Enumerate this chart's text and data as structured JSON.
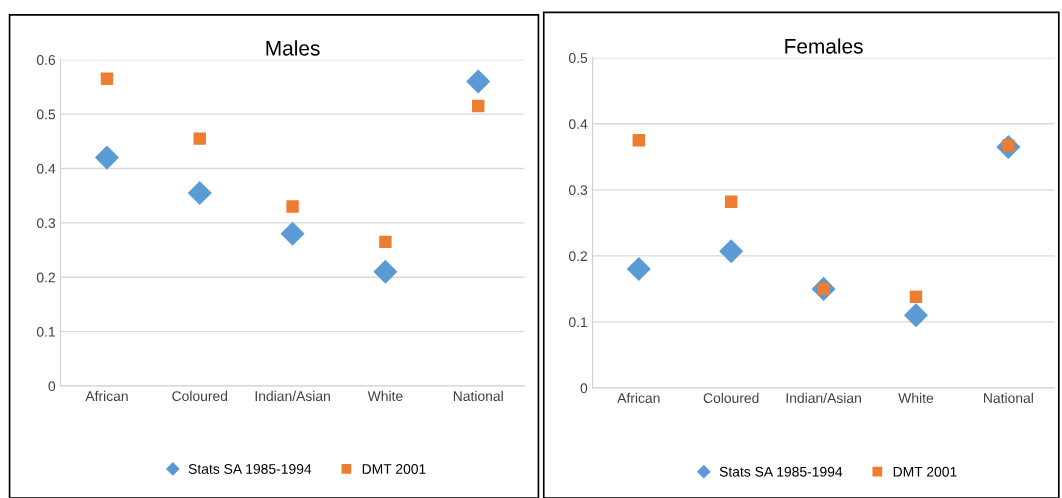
{
  "chart_data": [
    {
      "type": "scatter",
      "title": "Males",
      "categories": [
        "African",
        "Coloured",
        "Indian/Asian",
        "White",
        "National"
      ],
      "ylim": [
        0,
        0.6
      ],
      "yticks": [
        {
          "value": 0,
          "label": "0"
        },
        0.1,
        0.2,
        0.3,
        0.4,
        0.5,
        0.6
      ],
      "grid": "y",
      "legend": "bottom",
      "series": [
        {
          "name": "Stats SA 1985-1994",
          "color": "#5b9bd5",
          "marker": "diamond",
          "values": [
            0.42,
            0.355,
            0.28,
            0.21,
            0.56
          ]
        },
        {
          "name": "DMT 2001",
          "color": "#ed7d31",
          "marker": "square",
          "values": [
            0.565,
            0.455,
            0.33,
            0.265,
            0.515
          ]
        }
      ]
    },
    {
      "type": "scatter",
      "title": "Females",
      "categories": [
        "African",
        "Coloured",
        "Indian/Asian",
        "White",
        "National"
      ],
      "ylim": [
        0,
        0.5
      ],
      "yticks": [
        {
          "value": 0,
          "label": "0"
        },
        0.1,
        0.2,
        0.3,
        0.4,
        0.5
      ],
      "grid": "y",
      "legend": "bottom",
      "series": [
        {
          "name": "Stats SA 1985-1994",
          "color": "#5b9bd5",
          "marker": "diamond",
          "values": [
            0.18,
            0.207,
            0.15,
            0.11,
            0.365
          ]
        },
        {
          "name": "DMT 2001",
          "color": "#ed7d31",
          "marker": "square",
          "values": [
            0.375,
            0.282,
            0.15,
            0.138,
            0.367
          ]
        }
      ]
    }
  ]
}
